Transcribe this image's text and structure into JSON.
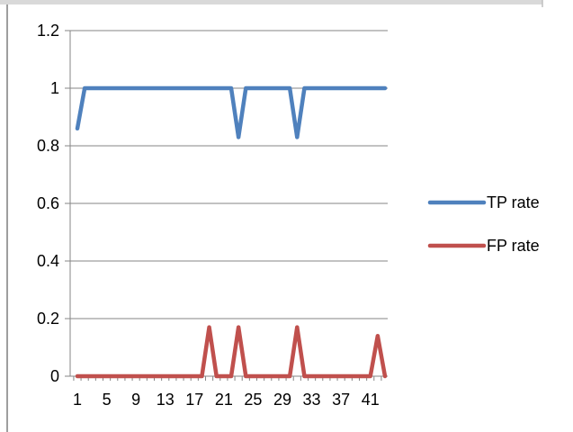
{
  "chart_data": {
    "type": "line",
    "x": [
      1,
      2,
      3,
      4,
      5,
      6,
      7,
      8,
      9,
      10,
      11,
      12,
      13,
      14,
      15,
      16,
      17,
      18,
      19,
      20,
      21,
      22,
      23,
      24,
      25,
      26,
      27,
      28,
      29,
      30,
      31,
      32,
      33,
      34,
      35,
      36,
      37,
      38,
      39,
      40,
      41,
      42,
      43
    ],
    "x_tick_labels": [
      "1",
      "5",
      "9",
      "13",
      "17",
      "21",
      "25",
      "29",
      "33",
      "37",
      "41"
    ],
    "y_tick_labels": [
      "0",
      "0.2",
      "0.4",
      "0.6",
      "0.8",
      "1",
      "1.2"
    ],
    "ylim": [
      0,
      1.2
    ],
    "ystep": 0.2,
    "grid": "horizontal",
    "legend_position": "right",
    "series": [
      {
        "name": "TP rate",
        "color": "#4f81bd",
        "values": [
          0.86,
          1,
          1,
          1,
          1,
          1,
          1,
          1,
          1,
          1,
          1,
          1,
          1,
          1,
          1,
          1,
          1,
          1,
          1,
          1,
          1,
          1,
          0.83,
          1,
          1,
          1,
          1,
          1,
          1,
          1,
          0.83,
          1,
          1,
          1,
          1,
          1,
          1,
          1,
          1,
          1,
          1,
          1,
          1
        ]
      },
      {
        "name": "FP rate",
        "color": "#c0504d",
        "values": [
          0,
          0,
          0,
          0,
          0,
          0,
          0,
          0,
          0,
          0,
          0,
          0,
          0,
          0,
          0,
          0,
          0,
          0,
          0.17,
          0,
          0,
          0,
          0.17,
          0,
          0,
          0,
          0,
          0,
          0,
          0,
          0.17,
          0,
          0,
          0,
          0,
          0,
          0,
          0,
          0,
          0,
          0,
          0.14,
          0
        ]
      }
    ]
  }
}
